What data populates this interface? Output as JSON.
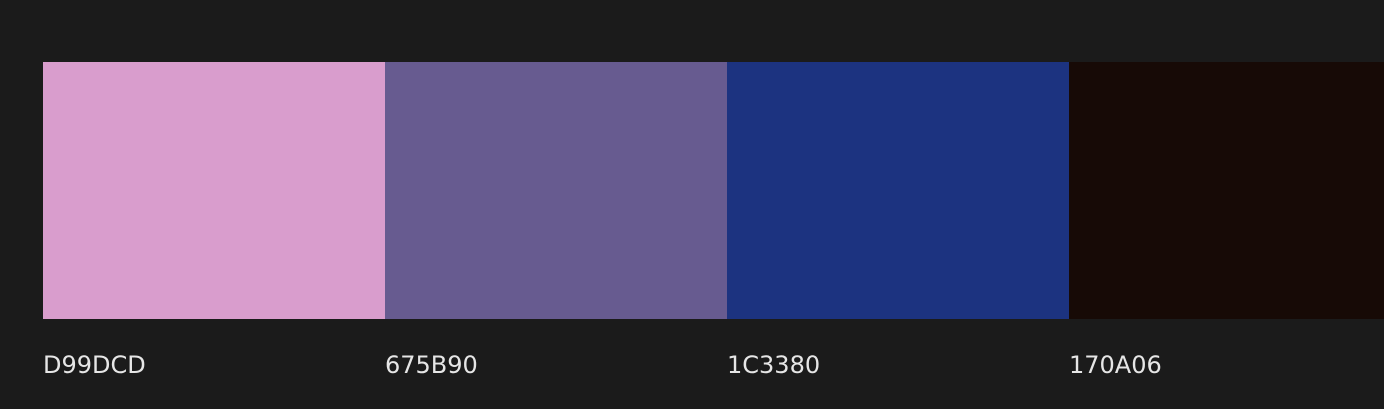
{
  "palette": {
    "colors": [
      {
        "hex_label": "D99DCD",
        "color": "#D99DCD"
      },
      {
        "hex_label": "675B90",
        "color": "#675B90"
      },
      {
        "hex_label": "1C3380",
        "color": "#1C3380"
      },
      {
        "hex_label": "170A06",
        "color": "#170A06"
      }
    ]
  }
}
